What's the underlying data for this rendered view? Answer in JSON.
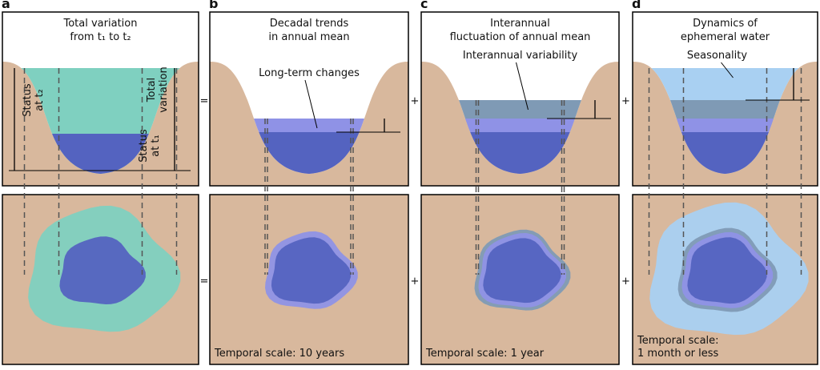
{
  "panels": [
    {
      "label": "a",
      "title": [
        "Total variation",
        "from t₁ to t₂"
      ],
      "status_t2": [
        "Status",
        "at t₂"
      ],
      "total_variation": [
        "Total",
        "variation"
      ],
      "status_t1": [
        "Status",
        "at t₁"
      ]
    },
    {
      "label": "b",
      "title": [
        "Decadal trends",
        "in annual mean"
      ],
      "callout": "Long-term changes",
      "scale": [
        "Temporal scale: 10 years"
      ]
    },
    {
      "label": "c",
      "title": [
        "Interannual",
        "fluctuation of annual mean"
      ],
      "callout": "Interannual variability",
      "scale": [
        "Temporal scale: 1 year"
      ]
    },
    {
      "label": "d",
      "title": [
        "Dynamics of",
        "ephemeral water"
      ],
      "callout": "Seasonality",
      "scale": [
        "Temporal scale:",
        "1 month or less"
      ]
    }
  ],
  "operators": {
    "top": [
      "=",
      "+",
      "+"
    ],
    "bottom": [
      "=",
      "+",
      "+"
    ]
  }
}
